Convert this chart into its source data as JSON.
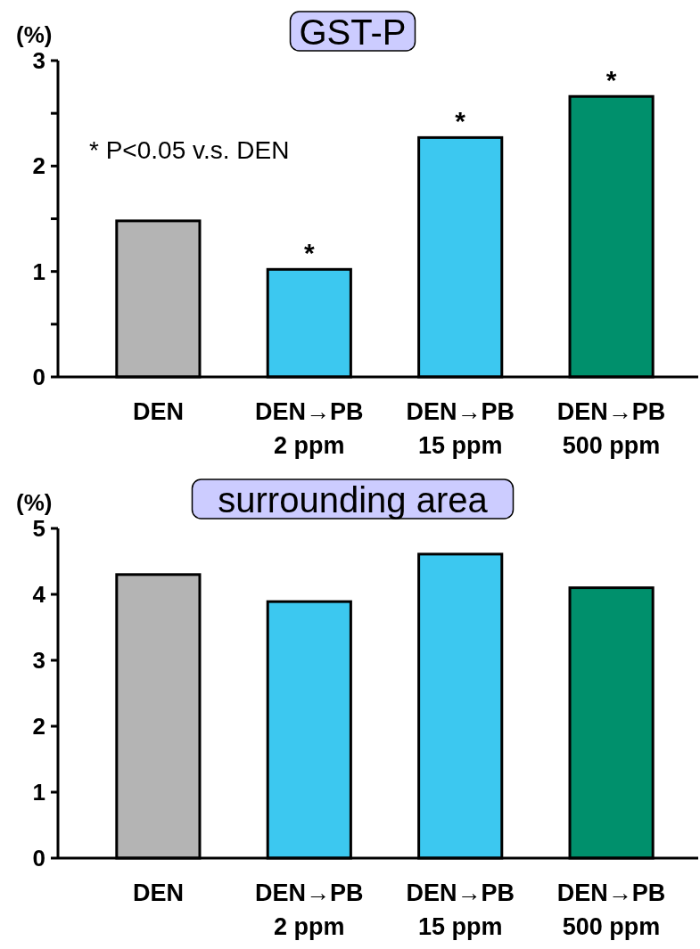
{
  "chart_data": [
    {
      "type": "bar",
      "title": "GST-P",
      "ylabel": "(%)",
      "categories": [
        "DEN",
        "DEN→PB\n2 ppm",
        "DEN→PB\n15 ppm",
        "DEN→PB\n500 ppm"
      ],
      "values": [
        1.48,
        1.02,
        2.27,
        2.66
      ],
      "colors": [
        "#b4b4b4",
        "#3cc8f0",
        "#3cc8f0",
        "#00906c"
      ],
      "ylim": [
        0,
        3
      ],
      "yticks": [
        0,
        {
          "value": 0.5,
          "label": null
        },
        1,
        {
          "value": 1.5,
          "label": null
        },
        2,
        {
          "value": 2.5,
          "label": null
        },
        3
      ],
      "grid": false,
      "annotations": [
        "* P<0.05 v.s. DEN",
        {
          "text": "*",
          "x": "DEN→PB\n2 ppm",
          "y": 1.02
        },
        {
          "text": "*",
          "x": "DEN→PB\n15 ppm",
          "y": 2.27
        },
        {
          "text": "*",
          "x": "DEN→PB\n500 ppm",
          "y": 2.66
        }
      ]
    },
    {
      "type": "bar",
      "title": "surrounding area",
      "ylabel": "(%)",
      "categories": [
        "DEN",
        "DEN→PB\n2 ppm",
        "DEN→PB\n15 ppm",
        "DEN→PB\n500 ppm"
      ],
      "values": [
        4.3,
        3.89,
        4.61,
        4.1
      ],
      "colors": [
        "#b4b4b4",
        "#3cc8f0",
        "#3cc8f0",
        "#00906c"
      ],
      "ylim": [
        0,
        5
      ],
      "yticks": [
        0,
        1,
        2,
        3,
        4,
        5
      ],
      "grid": false
    }
  ]
}
